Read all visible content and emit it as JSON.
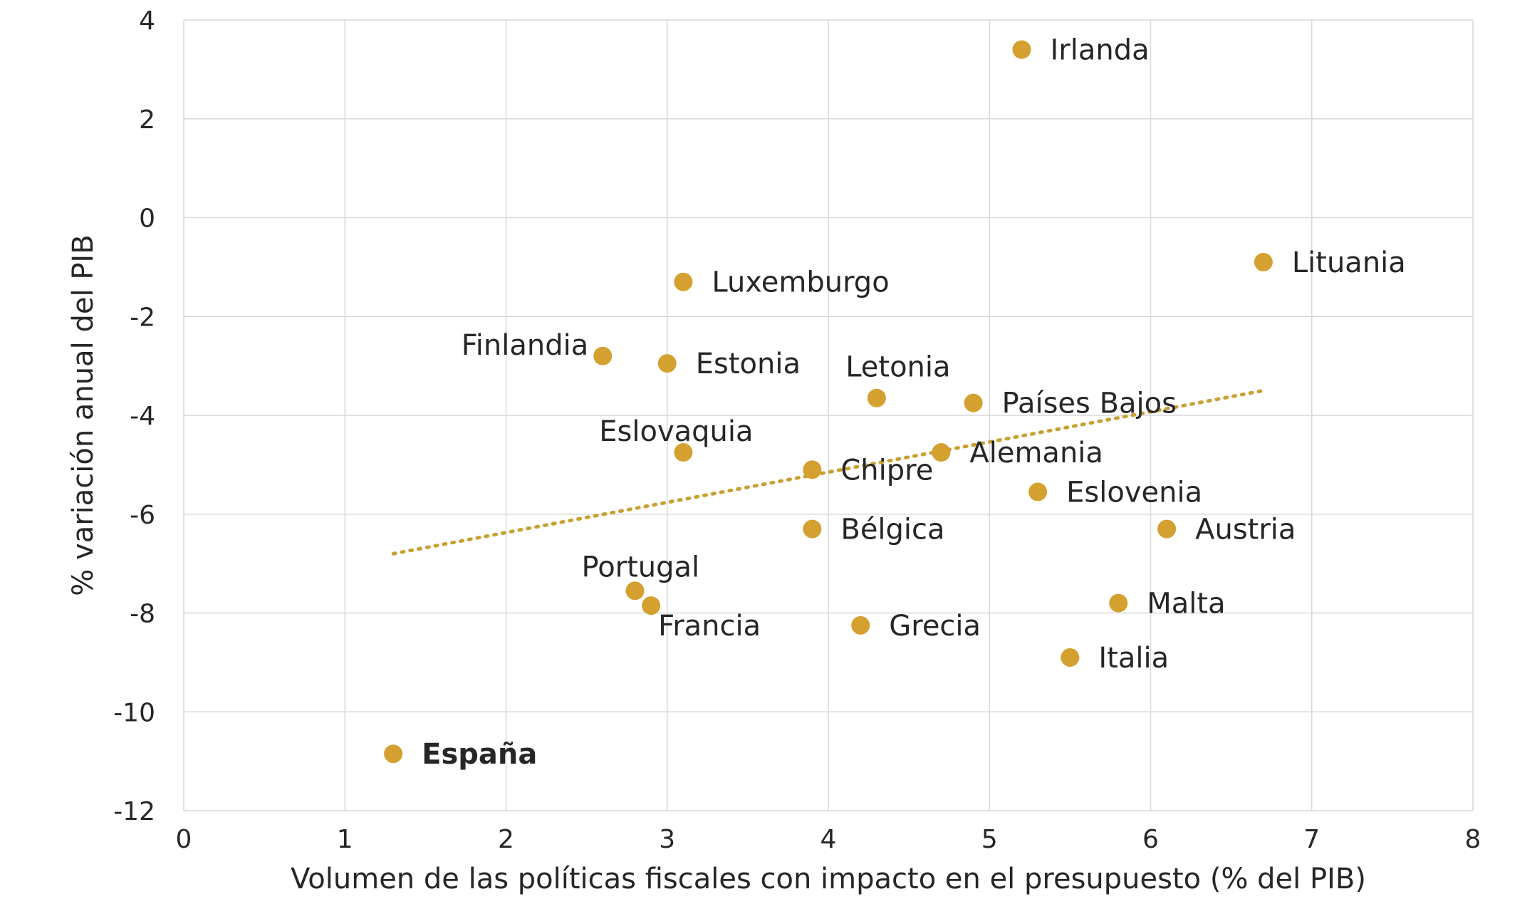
{
  "chart_data": {
    "type": "scatter",
    "title": "",
    "xlabel": "Volumen de las políticas fiscales con impacto en el presupuesto (% del PIB)",
    "ylabel": "% variación anual del PIB",
    "xlim": [
      0,
      8
    ],
    "ylim": [
      -12,
      4
    ],
    "xticks": [
      0,
      1,
      2,
      3,
      4,
      5,
      6,
      7,
      8
    ],
    "yticks": [
      -12,
      -10,
      -8,
      -6,
      -4,
      -2,
      0,
      2,
      4
    ],
    "x_tick_labels": [
      "0",
      "1",
      "2",
      "3",
      "4",
      "5",
      "6",
      "7",
      "8"
    ],
    "y_tick_labels": [
      "-12",
      "-10",
      "-8",
      "-6",
      "-4",
      "-2",
      "0",
      "2",
      "4"
    ],
    "grid": true,
    "marker_color": "#D4A030",
    "trendline": {
      "style": "dotted",
      "color": "#C9A030",
      "from": {
        "x": 1.3,
        "y": -6.8
      },
      "to": {
        "x": 6.7,
        "y": -3.5
      }
    },
    "points": [
      {
        "label": "Irlanda",
        "x": 5.2,
        "y": 3.4
      },
      {
        "label": "Lituania",
        "x": 6.7,
        "y": -0.9
      },
      {
        "label": "Luxemburgo",
        "x": 3.1,
        "y": -1.3
      },
      {
        "label": "Finlandia",
        "x": 2.6,
        "y": -2.8
      },
      {
        "label": "Estonia",
        "x": 3.0,
        "y": -2.95
      },
      {
        "label": "Letonia",
        "x": 4.3,
        "y": -3.65
      },
      {
        "label": "Países Bajos",
        "x": 4.9,
        "y": -3.75
      },
      {
        "label": "Eslovaquia",
        "x": 3.1,
        "y": -4.75
      },
      {
        "label": "Alemania",
        "x": 4.7,
        "y": -4.75
      },
      {
        "label": "Chipre",
        "x": 3.9,
        "y": -5.1
      },
      {
        "label": "Eslovenia",
        "x": 5.3,
        "y": -5.55
      },
      {
        "label": "Bélgica",
        "x": 3.9,
        "y": -6.3
      },
      {
        "label": "Austria",
        "x": 6.1,
        "y": -6.3
      },
      {
        "label": "Portugal",
        "x": 2.8,
        "y": -7.55
      },
      {
        "label": "Francia",
        "x": 2.9,
        "y": -7.85
      },
      {
        "label": "Malta",
        "x": 5.8,
        "y": -7.8
      },
      {
        "label": "Grecia",
        "x": 4.2,
        "y": -8.25
      },
      {
        "label": "Italia",
        "x": 5.5,
        "y": -8.9
      },
      {
        "label": "España",
        "x": 1.3,
        "y": -10.85,
        "bold": true
      }
    ]
  }
}
